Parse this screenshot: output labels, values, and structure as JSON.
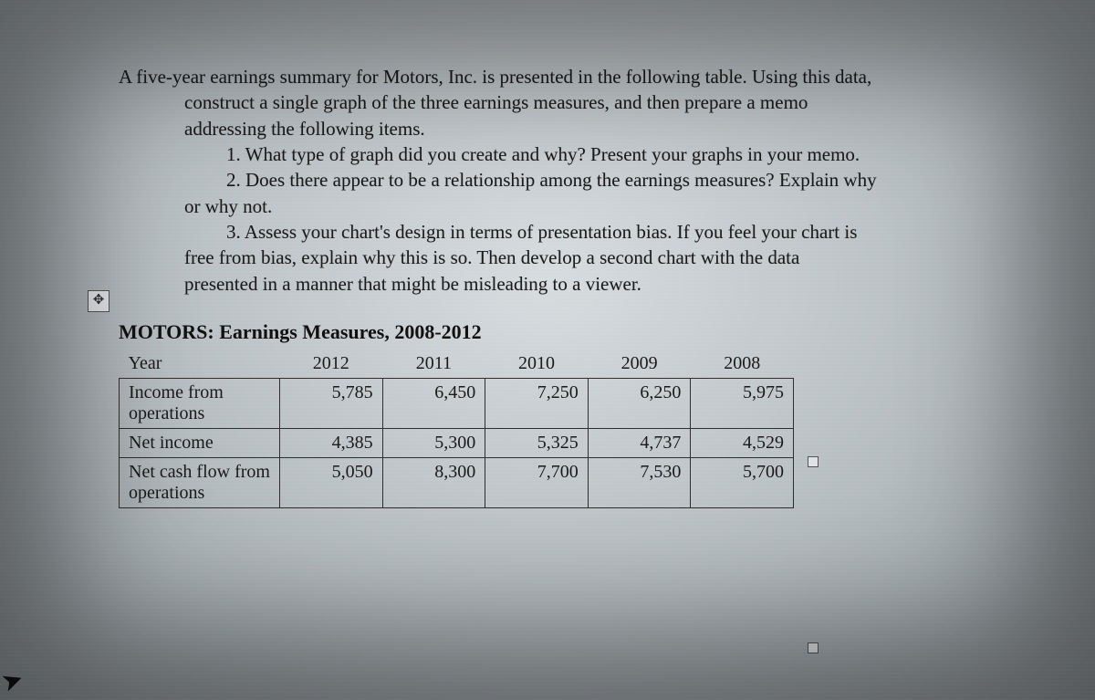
{
  "prompt": {
    "line1": "A five-year earnings summary for Motors, Inc. is presented in the following table. Using this data,",
    "line2": "construct a single graph of the three earnings measures, and then prepare a memo",
    "line3": "addressing the following items.",
    "item1": "1.   What type of graph did you create and why? Present your graphs in your memo.",
    "item2": "2.   Does there appear to be a relationship among the earnings measures? Explain why",
    "item2b": "or why not.",
    "item3": "3.   Assess your chart's design in terms of presentation bias. If you feel your chart is",
    "item3b": "free from bias, explain why this is so. Then develop a second chart with the data",
    "item3c": "presented in a manner that might be misleading to a viewer."
  },
  "table": {
    "title": "MOTORS: Earnings Measures, 2008-2012",
    "header_label": "Year",
    "years": [
      "2012",
      "2011",
      "2010",
      "2009",
      "2008"
    ],
    "rows": [
      {
        "label": "Income from operations",
        "cells": [
          "5,785",
          "6,450",
          "7,250",
          "6,250",
          "5,975"
        ]
      },
      {
        "label": "Net income",
        "cells": [
          "4,385",
          "5,300",
          "5,325",
          "4,737",
          "4,529"
        ]
      },
      {
        "label": "Net cash flow from operations",
        "cells": [
          "5,050",
          "8,300",
          "7,700",
          "7,530",
          "5,700"
        ]
      }
    ]
  },
  "icons": {
    "move_handle": "✥"
  },
  "style": {
    "text_color": "#1a1a1a",
    "border_color": "#2e2e2e",
    "font_family": "Times New Roman"
  }
}
